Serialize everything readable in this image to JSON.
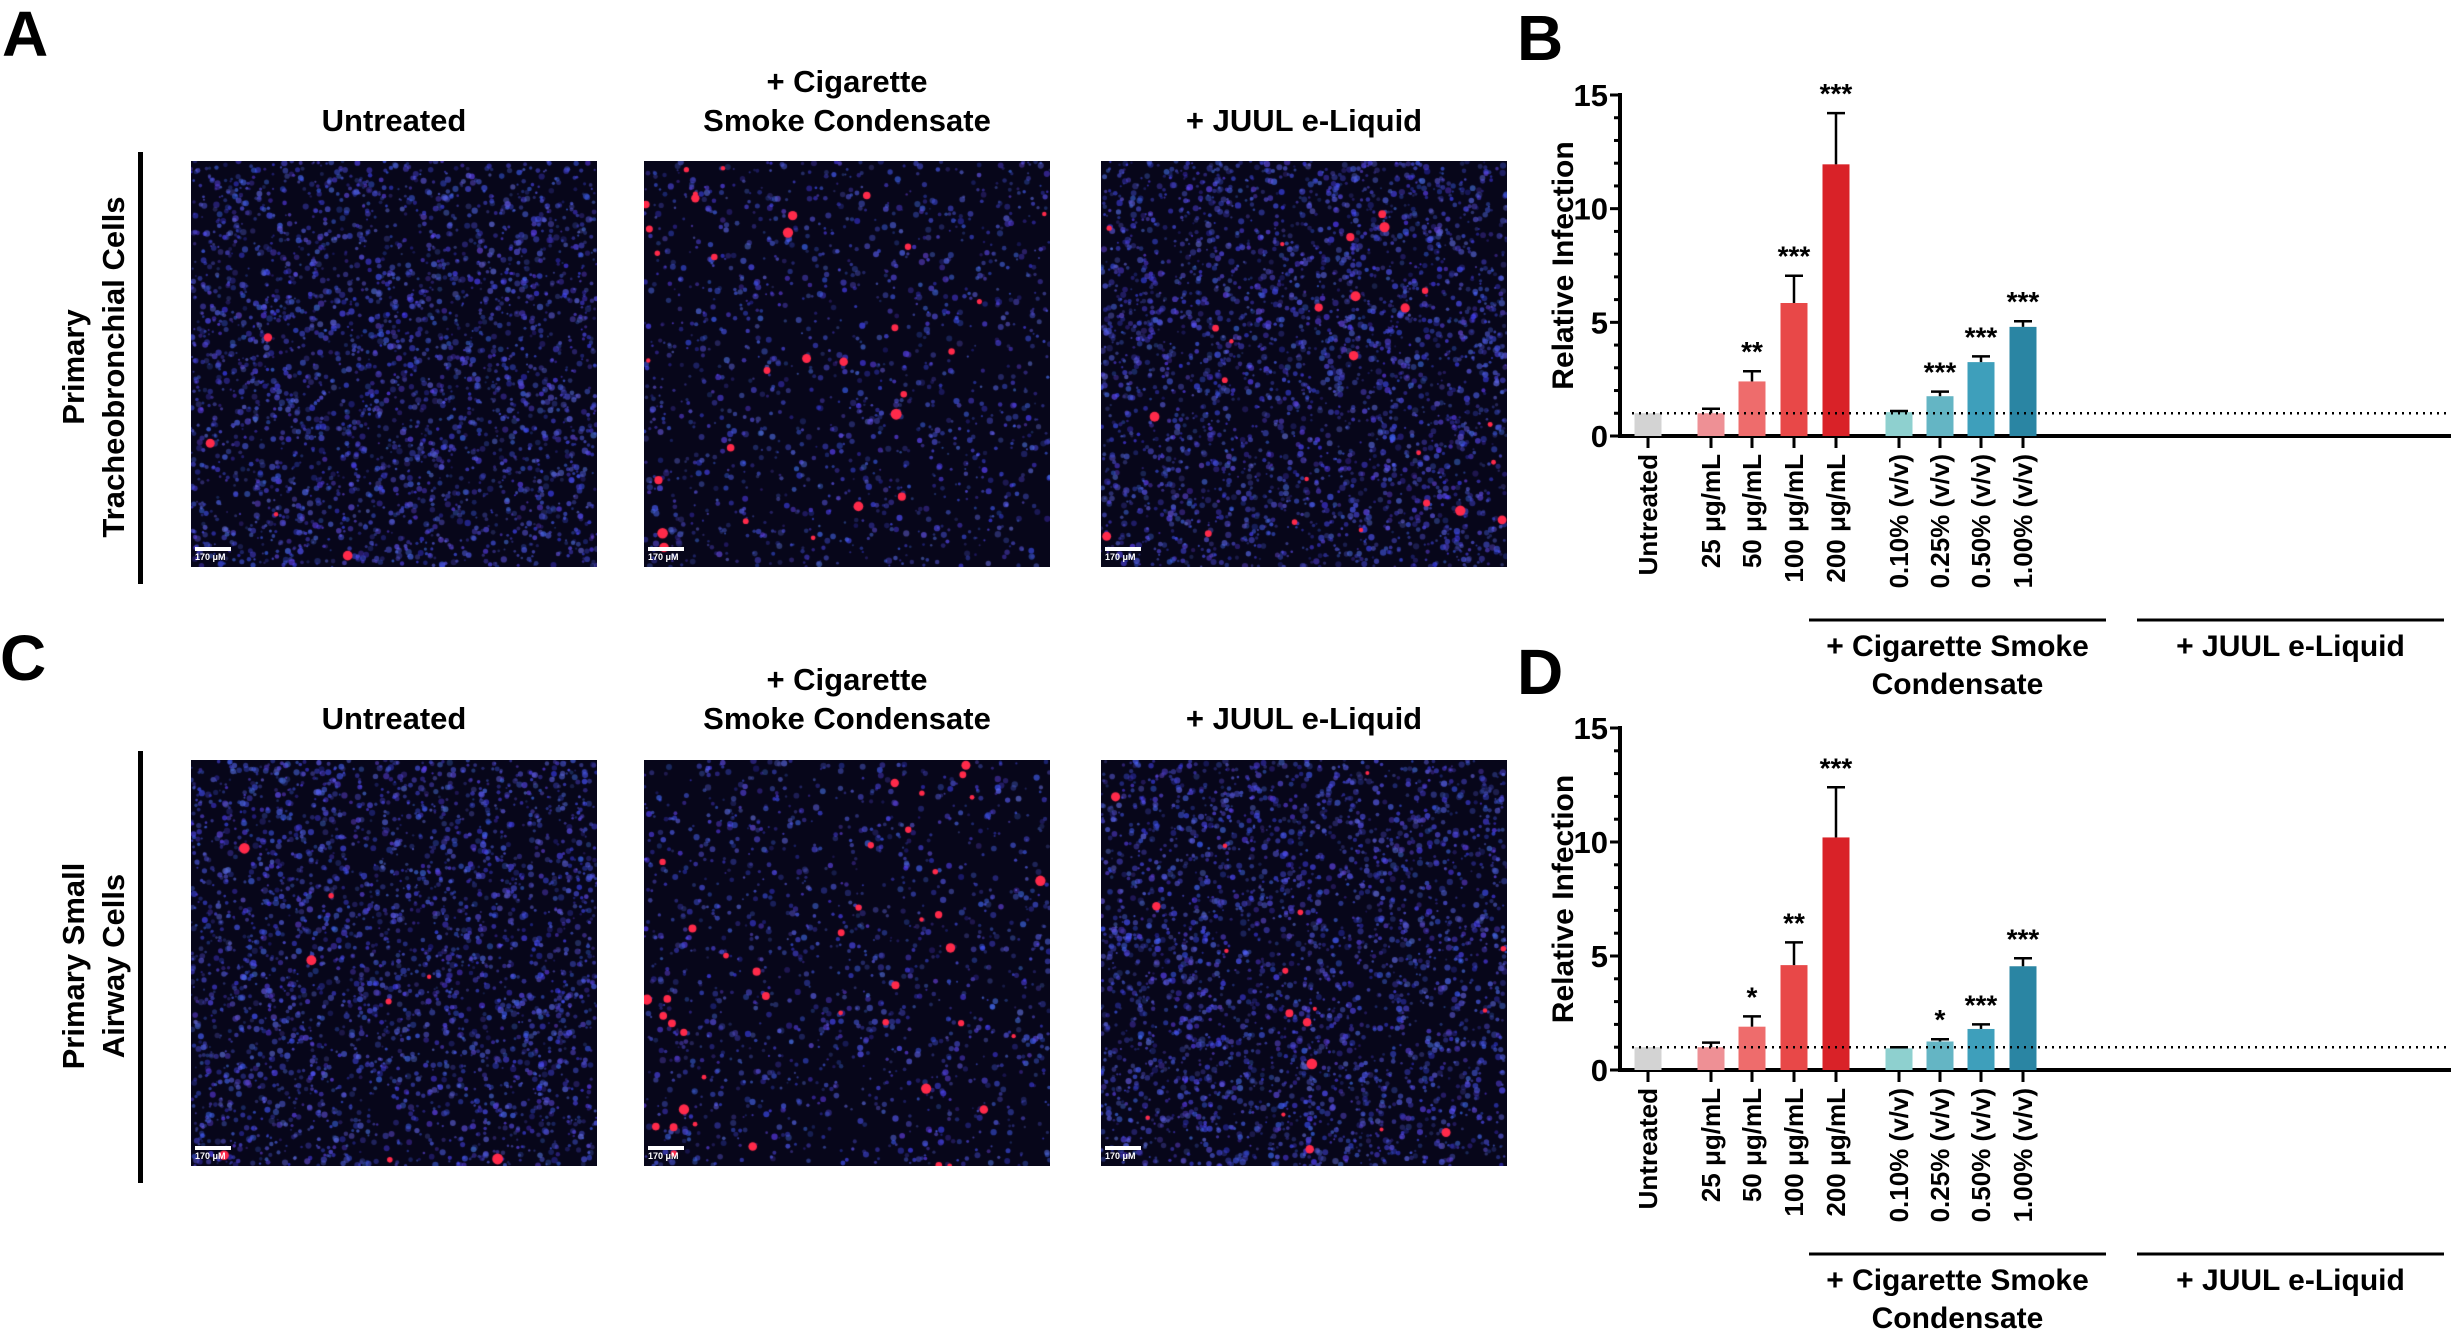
{
  "panels": {
    "A": "A",
    "B": "B",
    "C": "C",
    "D": "D"
  },
  "micrographs": {
    "columns": [
      "Untreated",
      "+ Cigarette\nSmoke Condensate",
      "+ JUUL e-Liquid"
    ],
    "column_lines": [
      [
        "Untreated"
      ],
      [
        "+ Cigarette",
        "Smoke Condensate"
      ],
      [
        "+ JUUL e-Liquid"
      ]
    ],
    "rows": [
      {
        "label_lines": [
          "Primary",
          "Tracheobronchial Cells"
        ]
      },
      {
        "label_lines": [
          "Primary Small",
          "Airway Cells"
        ]
      }
    ],
    "scale_bar_label": "170 μM",
    "colors": {
      "nuclei": "#3a3fd0",
      "infection": "#ff2a4a",
      "background": "#07061a"
    }
  },
  "chart_data": [
    {
      "panel": "B",
      "type": "bar",
      "ylabel": "Relative Infection",
      "ylim": [
        0,
        15
      ],
      "yticks": [
        0,
        5,
        10,
        15
      ],
      "reference_line": 1,
      "categories": [
        "Untreated",
        "25 μg/mL",
        "50 μg/mL",
        "100 μg/mL",
        "200 μg/mL",
        "0.10% (v/v)",
        "0.25% (v/v)",
        "0.50% (v/v)",
        "1.00% (v/v)"
      ],
      "values": [
        1.0,
        1.0,
        2.4,
        5.85,
        11.95,
        1.05,
        1.75,
        3.25,
        4.8
      ],
      "error_upper": [
        0,
        0.2,
        0.45,
        1.2,
        2.25,
        0.05,
        0.2,
        0.25,
        0.25
      ],
      "significance": [
        "",
        "",
        "**",
        "***",
        "***",
        "",
        "***",
        "***",
        "***"
      ],
      "colors": [
        "#d3d3d3",
        "#ee9095",
        "#ee6c6c",
        "#e84848",
        "#d92228",
        "#8ed0cf",
        "#64b5c4",
        "#3e9fbb",
        "#2a85a3"
      ],
      "groups": [
        {
          "label_lines": [
            "+ Cigarette Smoke",
            "Condensate"
          ],
          "categories": [
            1,
            2,
            3,
            4
          ]
        },
        {
          "label_lines": [
            "+ JUUL e-Liquid"
          ],
          "categories": [
            5,
            6,
            7,
            8
          ]
        }
      ]
    },
    {
      "panel": "D",
      "type": "bar",
      "ylabel": "Relative Infection",
      "ylim": [
        0,
        15
      ],
      "yticks": [
        0,
        5,
        10,
        15
      ],
      "reference_line": 1,
      "categories": [
        "Untreated",
        "25 μg/mL",
        "50 μg/mL",
        "100 μg/mL",
        "200 μg/mL",
        "0.10% (v/v)",
        "0.25% (v/v)",
        "0.50% (v/v)",
        "1.00% (v/v)"
      ],
      "values": [
        1.0,
        1.0,
        1.9,
        4.6,
        10.2,
        0.95,
        1.25,
        1.8,
        4.55
      ],
      "error_upper": [
        0,
        0.2,
        0.45,
        1.0,
        2.2,
        0.05,
        0.1,
        0.2,
        0.35
      ],
      "significance": [
        "",
        "",
        "*",
        "**",
        "***",
        "",
        "*",
        "***",
        "***"
      ],
      "colors": [
        "#d3d3d3",
        "#ee9095",
        "#ee6c6c",
        "#e84848",
        "#d92228",
        "#8ed0cf",
        "#64b5c4",
        "#3e9fbb",
        "#2a85a3"
      ],
      "groups": [
        {
          "label_lines": [
            "+ Cigarette Smoke",
            "Condensate"
          ],
          "categories": [
            1,
            2,
            3,
            4
          ]
        },
        {
          "label_lines": [
            "+ JUUL e-Liquid"
          ],
          "categories": [
            5,
            6,
            7,
            8
          ]
        }
      ]
    }
  ]
}
